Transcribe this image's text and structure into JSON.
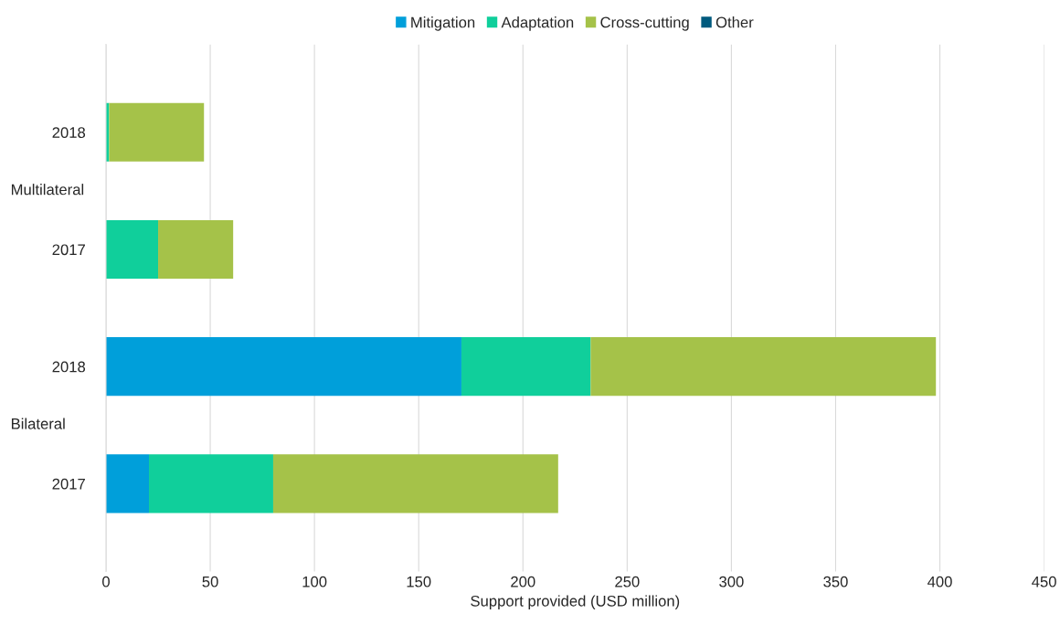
{
  "chart_data": {
    "type": "bar",
    "orientation": "horizontal",
    "stacked": true,
    "categories": [
      "2018",
      "2017",
      "2018",
      "2017"
    ],
    "series": [
      {
        "name": "Mitigation",
        "color": "#009fda",
        "values": [
          null,
          null,
          170.5,
          20.6
        ]
      },
      {
        "name": "Adaptation",
        "color": "#10cf9b",
        "values": [
          1.5,
          25,
          62,
          59.6
        ]
      },
      {
        "name": "Cross-cutting",
        "color": "#a5c249",
        "values": [
          45.5,
          36,
          165.6,
          136.7
        ]
      },
      {
        "name": "Other",
        "color": "#005a7e",
        "values": [
          null,
          null,
          null,
          null
        ]
      }
    ],
    "annotations": [
      "Multilateral",
      "Bilateral"
    ],
    "xlabel": "Support provided (USD million)",
    "xlim": [
      0,
      450
    ],
    "xticks": [
      0,
      50,
      100,
      150,
      200,
      250,
      300,
      350,
      400,
      450
    ],
    "grid": "x",
    "legend": "top"
  }
}
